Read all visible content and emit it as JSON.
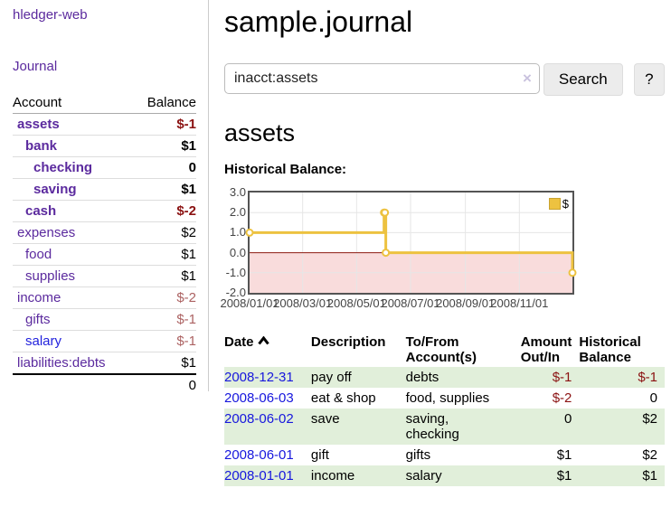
{
  "app": {
    "brand": "hledger-web",
    "nav": {
      "journal": "Journal"
    }
  },
  "icons": {
    "clear_search": "×",
    "sort_ascending": "chevron-up"
  },
  "theme": {
    "link_purple": "#5b2a9e",
    "link_blue": "#1717dd",
    "negative_bold": "#8b1212",
    "negative_muted": "#ac6262",
    "row_green": "#e1efda"
  },
  "sidebar": {
    "headers": {
      "account": "Account",
      "balance": "Balance"
    },
    "accounts": [
      {
        "name": "assets",
        "balance": "$-1"
      },
      {
        "name": "bank",
        "balance": "$1"
      },
      {
        "name": "checking",
        "balance": "0"
      },
      {
        "name": "saving",
        "balance": "$1"
      },
      {
        "name": "cash",
        "balance": "$-2"
      },
      {
        "name": "expenses",
        "balance": "$2"
      },
      {
        "name": "food",
        "balance": "$1"
      },
      {
        "name": "supplies",
        "balance": "$1"
      },
      {
        "name": "income",
        "balance": "$-2"
      },
      {
        "name": "gifts",
        "balance": "$-1"
      },
      {
        "name": "salary",
        "balance": "$-1"
      },
      {
        "name": "liabilities:debts",
        "balance": "$1"
      }
    ],
    "total": "0"
  },
  "main": {
    "title": "sample.journal",
    "search": {
      "value": "inacct:assets",
      "button": "Search",
      "help": "?"
    },
    "account_heading": "assets",
    "chart_label": "Historical Balance:"
  },
  "chart_data": {
    "type": "line",
    "title": "Historical Balance",
    "step": true,
    "grid": true,
    "legend_position": "top-right",
    "x_domain": [
      0,
      365
    ],
    "y_domain": [
      -2,
      3
    ],
    "series": [
      {
        "name": "$",
        "points": [
          {
            "date": "2008-01-01",
            "x": 0,
            "y": 1
          },
          {
            "date": "2008-06-01",
            "x": 152,
            "y": 2
          },
          {
            "date": "2008-06-02",
            "x": 153,
            "y": 2
          },
          {
            "date": "2008-06-03",
            "x": 154,
            "y": 0
          },
          {
            "date": "2008-12-31",
            "x": 365,
            "y": -1
          }
        ]
      }
    ],
    "x_ticks": [
      {
        "x": 0,
        "label": "2008/01/01"
      },
      {
        "x": 60,
        "label": "2008/03/01"
      },
      {
        "x": 121,
        "label": "2008/05/01"
      },
      {
        "x": 182,
        "label": "2008/07/01"
      },
      {
        "x": 244,
        "label": "2008/09/01"
      },
      {
        "x": 305,
        "label": "2008/11/01"
      }
    ],
    "y_ticks": [
      {
        "y": 3,
        "label": "3.0"
      },
      {
        "y": 2,
        "label": "2.0"
      },
      {
        "y": 1,
        "label": "1.0"
      },
      {
        "y": 0,
        "label": "0.0"
      },
      {
        "y": -1,
        "label": "-1.0"
      },
      {
        "y": -2,
        "label": "-2.0"
      }
    ],
    "colors": {
      "series": "#edc240",
      "swatch_border": "#c9a32f",
      "negative_region": "#f9dcdc",
      "zero_line": "#8b1a10",
      "grid": "#e6e6e6",
      "border": "#545454"
    }
  },
  "register": {
    "headers": {
      "date": "Date",
      "description": "Description",
      "accounts": "To/From\nAccount(s)",
      "amount": "Amount\nOut/In",
      "balance": "Historical\nBalance"
    },
    "rows": [
      {
        "date": "2008-12-31",
        "description": "pay off",
        "accounts": "debts",
        "amount": "$-1",
        "balance": "$-1"
      },
      {
        "date": "2008-06-03",
        "description": "eat & shop",
        "accounts": "food, supplies",
        "amount": "$-2",
        "balance": "0"
      },
      {
        "date": "2008-06-02",
        "description": "save",
        "accounts": "saving,\nchecking",
        "amount": "0",
        "balance": "$2"
      },
      {
        "date": "2008-06-01",
        "description": "gift",
        "accounts": "gifts",
        "amount": "$1",
        "balance": "$2"
      },
      {
        "date": "2008-01-01",
        "description": "income",
        "accounts": "salary",
        "amount": "$1",
        "balance": "$1"
      }
    ]
  }
}
